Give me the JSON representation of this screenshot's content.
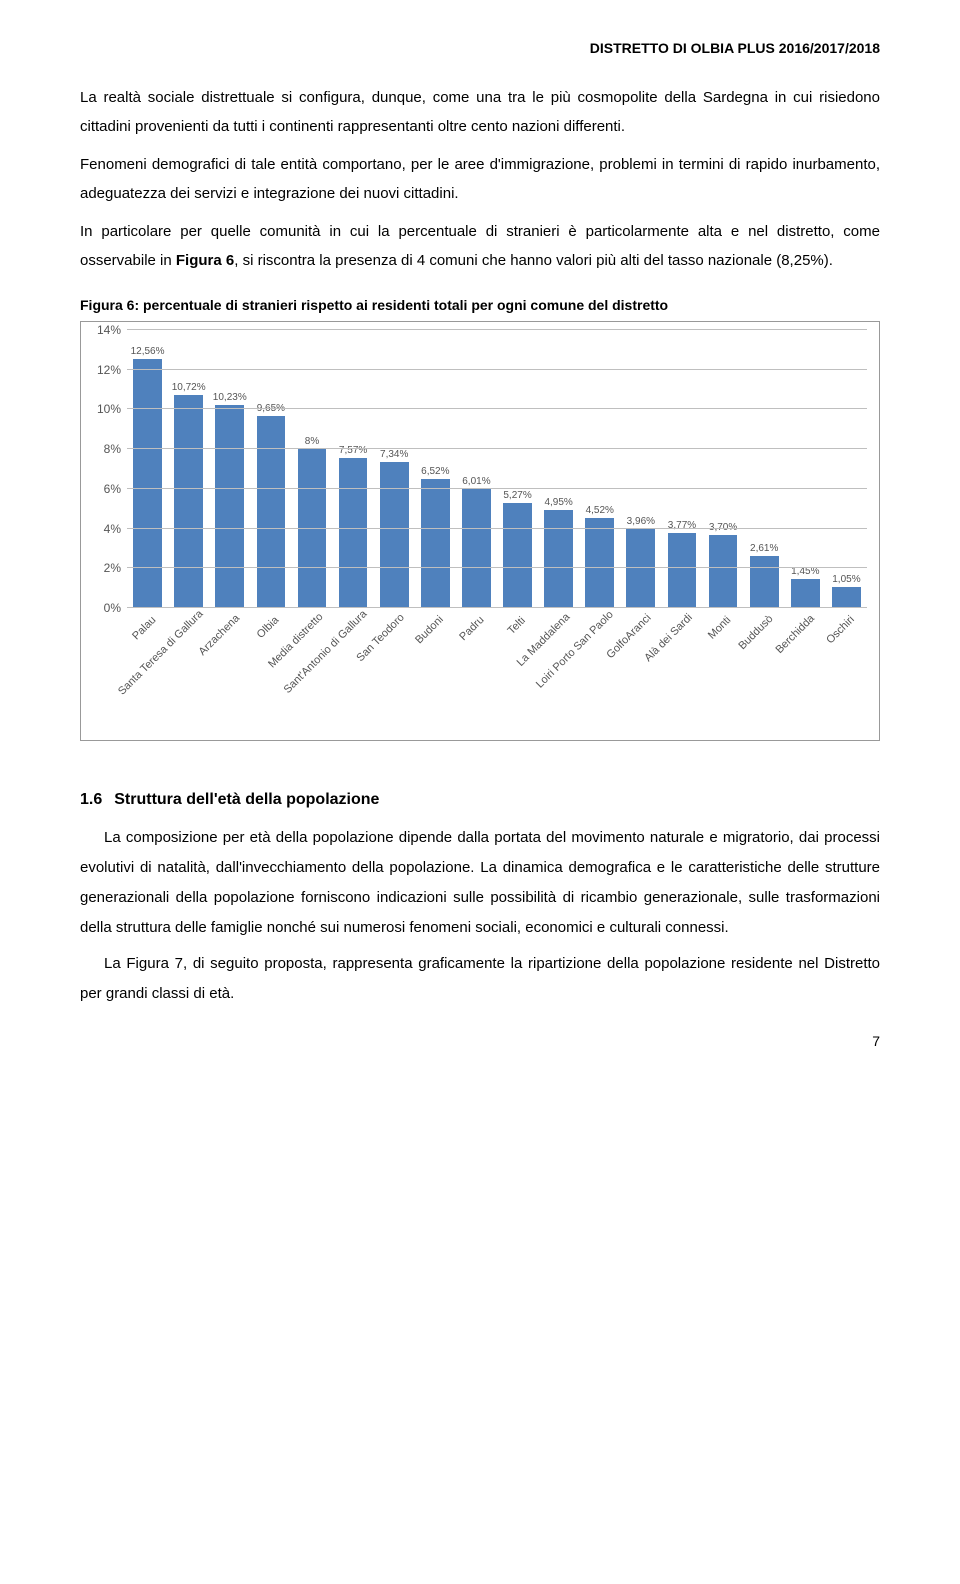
{
  "header": "DISTRETTO DI OLBIA PLUS 2016/2017/2018",
  "intro_para": "La realtà sociale distrettuale si configura, dunque, come una tra le più cosmopolite della Sardegna in cui risiedono cittadini provenienti da tutti i continenti rappresentanti oltre cento nazioni differenti.",
  "para2": "Fenomeni demografici di tale entità comportano, per le aree d'immigrazione, problemi in termini di rapido inurbamento, adeguatezza dei servizi e integrazione dei nuovi cittadini.",
  "para3_pre": "In particolare per quelle comunità in cui la percentuale di stranieri è particolarmente alta e nel distretto, come osservabile in ",
  "para3_bold": "Figura 6",
  "para3_post": ", si riscontra la presenza di 4 comuni che hanno valori più alti del tasso nazionale (8,25%).",
  "fig6_title": "Figura 6: percentuale di stranieri rispetto ai residenti totali per ogni comune del distretto",
  "chart": {
    "type": "bar",
    "ylim_max": 14,
    "ytick_step": 2,
    "yticks": [
      "0%",
      "2%",
      "4%",
      "6%",
      "8%",
      "10%",
      "12%",
      "14%"
    ],
    "bar_color": "#4f81bd",
    "grid_color": "#bfbfbf",
    "categories": [
      "Palau",
      "Santa Teresa di Gallura",
      "Arzachena",
      "Olbia",
      "Media distretto",
      "Sant'Antonio di Gallura",
      "San Teodoro",
      "Budoni",
      "Padru",
      "Telti",
      "La Maddalena",
      "Loiri Porto San Paolo",
      "GolfoAranci",
      "Alà dei Sardi",
      "Monti",
      "Buddusò",
      "Berchidda",
      "Oschiri"
    ],
    "values": [
      12.56,
      10.72,
      10.23,
      9.65,
      8.0,
      7.57,
      7.34,
      6.52,
      6.01,
      5.27,
      4.95,
      4.52,
      3.96,
      3.77,
      3.7,
      2.61,
      1.45,
      1.05
    ],
    "value_labels": [
      "12,56%",
      "10,72%",
      "10,23%",
      "9,65%",
      "8%",
      "7,57%",
      "7,34%",
      "6,52%",
      "6,01%",
      "5,27%",
      "4,95%",
      "4,52%",
      "3,96%",
      "3,77%",
      "3,70%",
      "2,61%",
      "1,45%",
      "1,05%"
    ]
  },
  "section": {
    "num": "1.6",
    "title": "Struttura dell'età della popolazione",
    "p1": "La composizione per età della popolazione dipende dalla portata del movimento naturale e migratorio, dai processi evolutivi di natalità, dall'invecchiamento della popolazione. La dinamica demografica e le caratteristiche delle strutture generazionali della popolazione forniscono indicazioni sulle possibilità di ricambio generazionale, sulle trasformazioni della struttura delle famiglie nonché sui numerosi fenomeni sociali, economici e culturali connessi.",
    "p2_pre": "La ",
    "p2_bold": "Figura 7",
    "p2_post": ", di seguito proposta, rappresenta graficamente la ripartizione della popolazione residente nel Distretto per grandi classi di età."
  },
  "page_number": "7"
}
